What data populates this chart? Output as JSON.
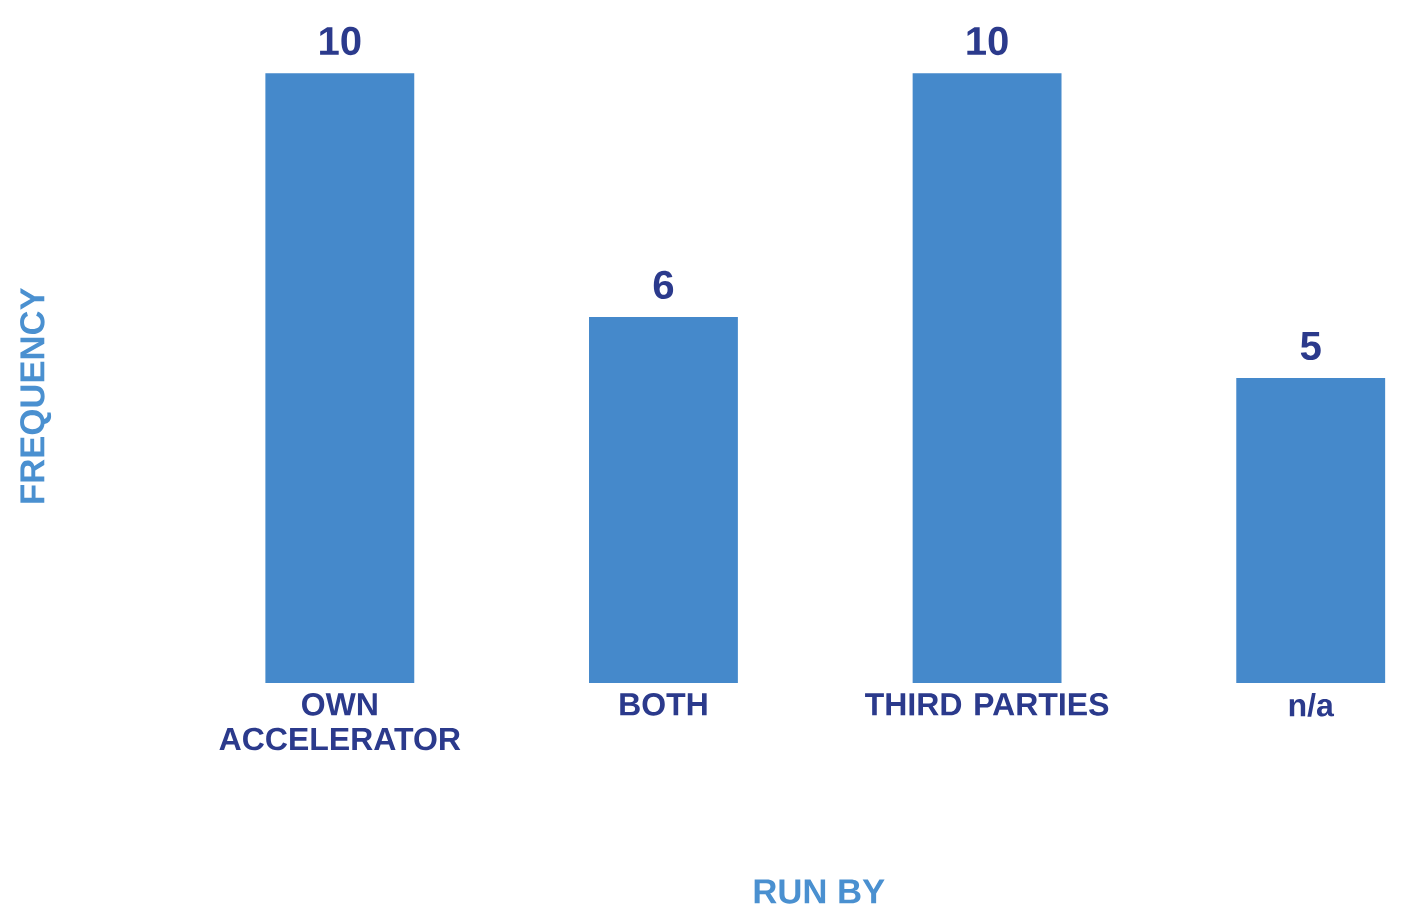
{
  "chart_data": {
    "type": "bar",
    "categories": [
      "OWN ACCELERATOR",
      "BOTH",
      "THIRD PARTIES",
      "n/a"
    ],
    "values": [
      10,
      6,
      10,
      5
    ],
    "color": "#4589cb",
    "data_labels": true,
    "xlabel": "RUN BY",
    "ylabel": "FREQUENCY"
  }
}
